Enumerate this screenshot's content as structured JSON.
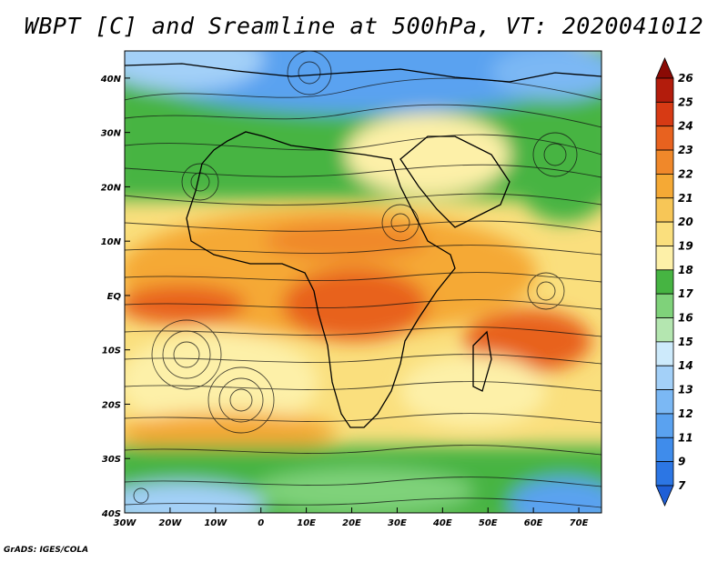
{
  "title": "WBPT [C] and Sreamline at 500hPa, VT: 2020041012",
  "credit": "GrADS: IGES/COLA",
  "chart_data": {
    "type": "heatmap",
    "variable": "WBPT [C]",
    "level": "500hPa",
    "valid_time": "2020041012",
    "overlay": "streamlines",
    "lon_range": [
      -30,
      75
    ],
    "lat_range": [
      -40,
      45
    ],
    "x_ticks": [
      "30W",
      "20W",
      "10W",
      "0",
      "10E",
      "20E",
      "30E",
      "40E",
      "50E",
      "60E",
      "70E"
    ],
    "y_ticks": [
      "40N",
      "30N",
      "20N",
      "10N",
      "EQ",
      "10S",
      "20S",
      "30S",
      "40S"
    ],
    "x_tick_values": [
      -30,
      -20,
      -10,
      0,
      10,
      20,
      30,
      40,
      50,
      60,
      70
    ],
    "y_tick_values": [
      40,
      30,
      20,
      10,
      0,
      -10,
      -20,
      -30,
      -40
    ],
    "colorbar": {
      "levels": [
        7,
        9,
        11,
        12,
        13,
        14,
        15,
        16,
        17,
        18,
        19,
        20,
        21,
        22,
        23,
        24,
        25,
        26
      ],
      "labels": [
        "26",
        "25",
        "24",
        "23",
        "22",
        "21",
        "20",
        "19",
        "18",
        "17",
        "16",
        "15",
        "14",
        "13",
        "12",
        "11",
        "9",
        "7"
      ],
      "colors": [
        "#1f5fd6",
        "#2c76e4",
        "#3f8ceb",
        "#5aa2f0",
        "#7bb8f4",
        "#a3d0f8",
        "#cdeafb",
        "#b4e6b0",
        "#7fd27a",
        "#46b442",
        "#fdf0a8",
        "#fadf7d",
        "#f7c657",
        "#f5a935",
        "#f0882a",
        "#e8621f",
        "#d73a14",
        "#b31c0c",
        "#8a0a05"
      ]
    }
  }
}
